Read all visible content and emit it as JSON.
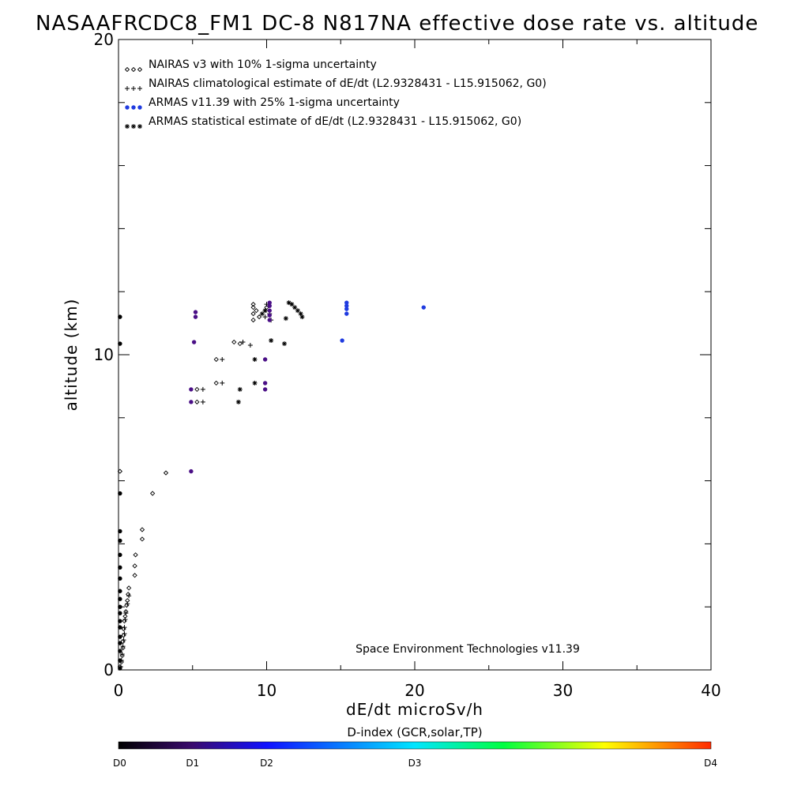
{
  "chart_data": {
    "type": "scatter",
    "title": "NASAAFRCDC8_FM1 DC-8   N817NA effective dose rate vs. altitude",
    "xlabel": "dE/dt microSv/h",
    "ylabel": "altitude (km)",
    "xlim": [
      0,
      40
    ],
    "ylim": [
      0,
      20
    ],
    "x_ticks": [
      0,
      10,
      20,
      30,
      40
    ],
    "y_ticks": [
      0,
      10,
      20
    ],
    "x_tick_labels": [
      "0",
      "10",
      "20",
      "30",
      "40"
    ],
    "y_tick_labels": [
      "0",
      "10",
      "20"
    ],
    "grid": false,
    "legend_position": "top-left",
    "annotation": "Space Environment Technologies v11.39",
    "series": [
      {
        "name": "NAIRAS v3 with 10% 1-sigma uncertainty",
        "marker": "diamond",
        "color": "#000000",
        "points": [
          [
            0.1,
            0.1
          ],
          [
            0.2,
            0.25
          ],
          [
            0.25,
            0.45
          ],
          [
            0.3,
            0.7
          ],
          [
            0.3,
            0.9
          ],
          [
            0.35,
            1.1
          ],
          [
            0.35,
            1.3
          ],
          [
            0.4,
            1.55
          ],
          [
            0.45,
            1.7
          ],
          [
            0.5,
            1.85
          ],
          [
            0.55,
            2.05
          ],
          [
            0.6,
            2.2
          ],
          [
            0.65,
            2.4
          ],
          [
            0.7,
            2.6
          ],
          [
            1.1,
            3.0
          ],
          [
            1.1,
            3.3
          ],
          [
            1.15,
            3.65
          ],
          [
            1.6,
            4.15
          ],
          [
            1.6,
            4.45
          ],
          [
            2.3,
            5.6
          ],
          [
            3.2,
            6.25
          ],
          [
            0.1,
            6.3
          ],
          [
            5.3,
            8.5
          ],
          [
            5.3,
            8.9
          ],
          [
            6.6,
            9.1
          ],
          [
            6.6,
            9.85
          ],
          [
            7.8,
            10.4
          ],
          [
            8.2,
            10.35
          ],
          [
            9.1,
            11.1
          ],
          [
            9.1,
            11.3
          ],
          [
            9.1,
            11.5
          ],
          [
            9.1,
            11.6
          ],
          [
            9.3,
            11.4
          ],
          [
            9.5,
            11.2
          ],
          [
            10.0,
            11.5
          ]
        ]
      },
      {
        "name": "NAIRAS climatological estimate of dE/dt (L2.9328431 - L15.915062, G0)",
        "marker": "plus",
        "color": "#000000",
        "points": [
          [
            0.15,
            0.1
          ],
          [
            0.2,
            0.3
          ],
          [
            0.25,
            0.5
          ],
          [
            0.3,
            0.75
          ],
          [
            0.35,
            0.95
          ],
          [
            0.4,
            1.15
          ],
          [
            0.4,
            1.35
          ],
          [
            0.45,
            1.6
          ],
          [
            0.5,
            1.8
          ],
          [
            0.6,
            2.1
          ],
          [
            0.7,
            2.35
          ],
          [
            5.7,
            8.5
          ],
          [
            5.7,
            8.9
          ],
          [
            7.0,
            9.1
          ],
          [
            7.0,
            9.85
          ],
          [
            8.4,
            10.4
          ],
          [
            8.9,
            10.3
          ],
          [
            9.9,
            11.2
          ],
          [
            9.9,
            11.4
          ],
          [
            10.0,
            11.6
          ],
          [
            10.2,
            11.3
          ],
          [
            10.3,
            11.1
          ]
        ]
      },
      {
        "name": "ARMAS v11.39 with 25% 1-sigma uncertainty",
        "marker": "dot",
        "color": "#1f2dd6",
        "points": [
          [
            0.1,
            0.05
          ],
          [
            0.1,
            0.3
          ],
          [
            0.1,
            0.6
          ],
          [
            0.1,
            0.85
          ],
          [
            0.1,
            1.05
          ],
          [
            0.1,
            1.35
          ],
          [
            0.1,
            1.55
          ],
          [
            0.1,
            1.8
          ],
          [
            0.1,
            2.0
          ],
          [
            0.1,
            2.25
          ],
          [
            0.1,
            2.5
          ],
          [
            0.1,
            2.9
          ],
          [
            0.1,
            3.25
          ],
          [
            0.1,
            3.65
          ],
          [
            0.1,
            4.1
          ],
          [
            0.1,
            4.4
          ],
          [
            0.1,
            5.6
          ],
          [
            0.1,
            10.35
          ],
          [
            0.1,
            11.2
          ],
          [
            4.9,
            6.3
          ],
          [
            4.9,
            8.5
          ],
          [
            4.9,
            8.9
          ],
          [
            5.1,
            10.4
          ],
          [
            5.2,
            11.2
          ],
          [
            5.2,
            11.35
          ],
          [
            9.9,
            8.9
          ],
          [
            9.9,
            9.1
          ],
          [
            9.9,
            9.85
          ],
          [
            10.2,
            11.1
          ],
          [
            10.2,
            11.25
          ],
          [
            10.2,
            11.4
          ],
          [
            10.2,
            11.55
          ],
          [
            10.2,
            11.65
          ],
          [
            15.1,
            10.45
          ],
          [
            15.4,
            11.3
          ],
          [
            15.4,
            11.45
          ],
          [
            15.4,
            11.55
          ],
          [
            15.4,
            11.65
          ],
          [
            20.6,
            11.5
          ]
        ]
      },
      {
        "name": "ARMAS statistical estimate of dE/dt (L2.9328431 - L15.915062, G0)",
        "marker": "asterisk",
        "color": "#000000",
        "points": [
          [
            8.1,
            8.5
          ],
          [
            8.2,
            8.9
          ],
          [
            9.2,
            9.1
          ],
          [
            9.2,
            9.85
          ],
          [
            10.3,
            10.45
          ],
          [
            11.2,
            10.35
          ],
          [
            11.3,
            11.15
          ],
          [
            9.9,
            11.4
          ],
          [
            9.7,
            11.3
          ],
          [
            11.5,
            11.65
          ],
          [
            11.7,
            11.6
          ],
          [
            11.9,
            11.5
          ],
          [
            12.1,
            11.4
          ],
          [
            12.3,
            11.3
          ],
          [
            12.4,
            11.2
          ]
        ]
      }
    ],
    "colorbar": {
      "title": "D-index (GCR,solar,TP)",
      "min": 0,
      "max": 4,
      "tick_labels": [
        "D0",
        "D1",
        "D2",
        "D3",
        "D4"
      ],
      "tick_values": [
        0,
        0.5,
        1,
        2,
        4
      ],
      "colors": [
        "#000000",
        "#3a0a6e",
        "#1010ff",
        "#00e5ff",
        "#00ff40",
        "#ffff00",
        "#ff2a00"
      ]
    }
  }
}
